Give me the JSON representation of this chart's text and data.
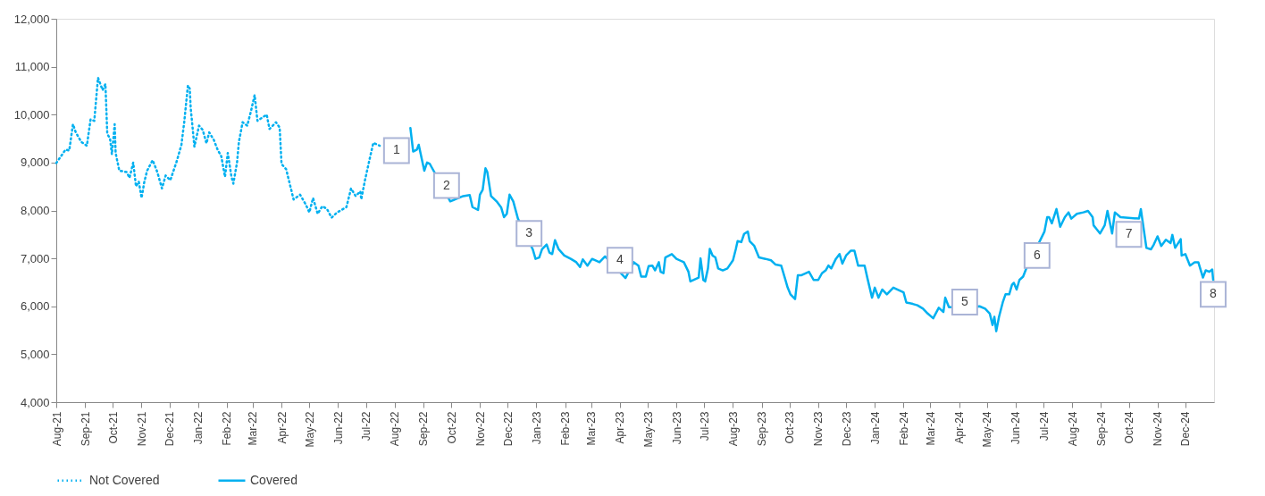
{
  "chart_data": {
    "type": "line",
    "xlim": [
      "2021-08-01",
      "2025-01-01"
    ],
    "xticks": [
      {
        "value": "2021-08-01",
        "label": "Aug-21"
      },
      {
        "value": "2021-09-01",
        "label": "Sep-21"
      },
      {
        "value": "2021-10-01",
        "label": "Oct-21"
      },
      {
        "value": "2021-11-01",
        "label": "Nov-21"
      },
      {
        "value": "2021-12-01",
        "label": "Dec-21"
      },
      {
        "value": "2022-01-01",
        "label": "Jan-22"
      },
      {
        "value": "2022-02-01",
        "label": "Feb-22"
      },
      {
        "value": "2022-03-01",
        "label": "Mar-22"
      },
      {
        "value": "2022-04-01",
        "label": "Apr-22"
      },
      {
        "value": "2022-05-01",
        "label": "May-22"
      },
      {
        "value": "2022-06-01",
        "label": "Jun-22"
      },
      {
        "value": "2022-07-01",
        "label": "Jul-22"
      },
      {
        "value": "2022-08-01",
        "label": "Aug-22"
      },
      {
        "value": "2022-09-01",
        "label": "Sep-22"
      },
      {
        "value": "2022-10-01",
        "label": "Oct-22"
      },
      {
        "value": "2022-11-01",
        "label": "Nov-22"
      },
      {
        "value": "2022-12-01",
        "label": "Dec-22"
      },
      {
        "value": "2023-01-01",
        "label": "Jan-23"
      },
      {
        "value": "2023-02-01",
        "label": "Feb-23"
      },
      {
        "value": "2023-03-01",
        "label": "Mar-23"
      },
      {
        "value": "2023-04-01",
        "label": "Apr-23"
      },
      {
        "value": "2023-05-01",
        "label": "May-23"
      },
      {
        "value": "2023-06-01",
        "label": "Jun-23"
      },
      {
        "value": "2023-07-01",
        "label": "Jul-23"
      },
      {
        "value": "2023-08-01",
        "label": "Aug-23"
      },
      {
        "value": "2023-09-01",
        "label": "Sep-23"
      },
      {
        "value": "2023-10-01",
        "label": "Oct-23"
      },
      {
        "value": "2023-11-01",
        "label": "Nov-23"
      },
      {
        "value": "2023-12-01",
        "label": "Dec-23"
      },
      {
        "value": "2024-01-01",
        "label": "Jan-24"
      },
      {
        "value": "2024-02-01",
        "label": "Feb-24"
      },
      {
        "value": "2024-03-01",
        "label": "Mar-24"
      },
      {
        "value": "2024-04-01",
        "label": "Apr-24"
      },
      {
        "value": "2024-05-01",
        "label": "May-24"
      },
      {
        "value": "2024-06-01",
        "label": "Jun-24"
      },
      {
        "value": "2024-07-01",
        "label": "Jul-24"
      },
      {
        "value": "2024-08-01",
        "label": "Aug-24"
      },
      {
        "value": "2024-09-01",
        "label": "Sep-24"
      },
      {
        "value": "2024-10-01",
        "label": "Oct-24"
      },
      {
        "value": "2024-11-01",
        "label": "Nov-24"
      },
      {
        "value": "2024-12-01",
        "label": "Dec-24"
      }
    ],
    "ylim": [
      4000,
      12000
    ],
    "yticks": [
      {
        "value": 4000,
        "label": "4,000"
      },
      {
        "value": 5000,
        "label": "5,000"
      },
      {
        "value": 6000,
        "label": "6,000"
      },
      {
        "value": 7000,
        "label": "7,000"
      },
      {
        "value": 8000,
        "label": "8,000"
      },
      {
        "value": 9000,
        "label": "9,000"
      },
      {
        "value": 10000,
        "label": "10,000"
      },
      {
        "value": 11000,
        "label": "11,000"
      },
      {
        "value": 12000,
        "label": "12,000"
      }
    ],
    "grid": false,
    "legend": "bottom",
    "series": [
      {
        "name": "Not Covered",
        "color": "#00b0f0",
        "line_style": "dotted",
        "x": [
          "2021-08-01",
          "2021-08-06",
          "2021-08-11",
          "2021-08-15",
          "2021-08-19",
          "2021-08-22",
          "2021-08-25",
          "2021-08-28",
          "2021-09-03",
          "2021-09-07",
          "2021-09-11",
          "2021-09-15",
          "2021-09-20",
          "2021-09-23",
          "2021-09-25",
          "2021-09-28",
          "2021-09-30",
          "2021-10-03",
          "2021-10-04",
          "2021-10-08",
          "2021-10-16",
          "2021-10-19",
          "2021-10-23",
          "2021-10-26",
          "2021-10-29",
          "2021-11-01",
          "2021-11-04",
          "2021-11-07",
          "2021-11-13",
          "2021-11-18",
          "2021-11-23",
          "2021-11-27",
          "2021-12-02",
          "2021-12-09",
          "2021-12-14",
          "2021-12-17",
          "2021-12-21",
          "2021-12-23",
          "2021-12-24",
          "2021-12-28",
          "2022-01-02",
          "2022-01-06",
          "2022-01-10",
          "2022-01-13",
          "2022-01-18",
          "2022-01-22",
          "2022-01-26",
          "2022-01-30",
          "2022-02-02",
          "2022-02-06",
          "2022-02-08",
          "2022-02-12",
          "2022-02-14",
          "2022-02-18",
          "2022-02-23",
          "2022-02-27",
          "2022-03-03",
          "2022-03-06",
          "2022-03-16",
          "2022-03-19",
          "2022-03-26",
          "2022-03-30",
          "2022-04-01",
          "2022-04-06",
          "2022-04-14",
          "2022-04-21",
          "2022-04-27",
          "2022-05-01",
          "2022-05-05",
          "2022-05-10",
          "2022-05-15",
          "2022-05-20",
          "2022-05-25",
          "2022-05-31",
          "2022-06-10",
          "2022-06-15",
          "2022-06-20",
          "2022-06-25",
          "2022-06-26",
          "2022-06-30",
          "2022-07-05",
          "2022-07-09",
          "2022-07-16"
        ],
        "values": [
          8990,
          9130,
          9270,
          9250,
          9800,
          9630,
          9530,
          9430,
          9350,
          9900,
          9870,
          10770,
          10510,
          10640,
          9600,
          9500,
          9170,
          9800,
          9200,
          8830,
          8800,
          8680,
          9000,
          8500,
          8600,
          8260,
          8600,
          8830,
          9050,
          8800,
          8460,
          8730,
          8630,
          9030,
          9370,
          9840,
          10610,
          10540,
          10140,
          9330,
          9770,
          9680,
          9400,
          9630,
          9470,
          9270,
          9130,
          8700,
          9200,
          8700,
          8560,
          9000,
          9430,
          9840,
          9770,
          10070,
          10410,
          9870,
          10000,
          9700,
          9840,
          9730,
          8970,
          8860,
          8230,
          8330,
          8130,
          7960,
          8260,
          7930,
          8090,
          8030,
          7850,
          7960,
          8070,
          8460,
          8300,
          8400,
          8230,
          8630,
          9070,
          9410,
          9350
        ]
      },
      {
        "name": "Covered",
        "color": "#00b0f0",
        "line_style": "solid",
        "x": [
          "2022-08-18",
          "2022-08-21",
          "2022-08-25",
          "2022-08-27",
          "2022-09-02",
          "2022-09-05",
          "2022-09-08",
          "2022-09-12",
          "2022-09-30",
          "2022-10-14",
          "2022-10-21",
          "2022-10-24",
          "2022-10-30",
          "2022-11-01",
          "2022-11-04",
          "2022-11-07",
          "2022-11-09",
          "2022-11-13",
          "2022-11-19",
          "2022-11-24",
          "2022-11-27",
          "2022-11-30",
          "2022-12-03",
          "2022-12-07",
          "2022-12-12",
          "2022-12-28",
          "2022-12-31",
          "2023-01-04",
          "2023-01-07",
          "2023-01-12",
          "2023-01-15",
          "2023-01-18",
          "2023-01-21",
          "2023-01-25",
          "2023-01-31",
          "2023-02-07",
          "2023-02-13",
          "2023-02-17",
          "2023-02-20",
          "2023-02-25",
          "2023-03-02",
          "2023-03-10",
          "2023-03-16",
          "2023-04-07",
          "2023-04-16",
          "2023-04-21",
          "2023-04-24",
          "2023-04-29",
          "2023-05-02",
          "2023-05-06",
          "2023-05-09",
          "2023-05-13",
          "2023-05-15",
          "2023-05-18",
          "2023-05-20",
          "2023-05-27",
          "2023-06-01",
          "2023-06-09",
          "2023-06-14",
          "2023-06-16",
          "2023-06-25",
          "2023-06-27",
          "2023-06-30",
          "2023-07-02",
          "2023-07-05",
          "2023-07-07",
          "2023-07-10",
          "2023-07-13",
          "2023-07-16",
          "2023-07-21",
          "2023-07-26",
          "2023-08-01",
          "2023-08-04",
          "2023-08-06",
          "2023-08-10",
          "2023-08-13",
          "2023-08-17",
          "2023-08-19",
          "2023-08-24",
          "2023-08-29",
          "2023-09-05",
          "2023-09-11",
          "2023-09-16",
          "2023-09-22",
          "2023-09-26",
          "2023-09-29",
          "2023-10-02",
          "2023-10-07",
          "2023-10-10",
          "2023-10-14",
          "2023-10-22",
          "2023-10-27",
          "2023-11-01",
          "2023-11-05",
          "2023-11-09",
          "2023-11-12",
          "2023-11-15",
          "2023-11-20",
          "2023-11-24",
          "2023-11-27",
          "2023-12-01",
          "2023-12-06",
          "2023-12-10",
          "2023-12-14",
          "2023-12-21",
          "2023-12-24",
          "2023-12-29",
          "2024-01-01",
          "2024-01-05",
          "2024-01-09",
          "2024-01-14",
          "2024-01-21",
          "2024-02-01",
          "2024-02-04",
          "2024-02-11",
          "2024-02-16",
          "2024-02-22",
          "2024-02-27",
          "2024-03-04",
          "2024-03-10",
          "2024-03-15",
          "2024-03-17",
          "2024-03-21",
          "2024-04-23",
          "2024-04-29",
          "2024-05-04",
          "2024-05-07",
          "2024-05-09",
          "2024-05-11",
          "2024-05-14",
          "2024-05-18",
          "2024-05-21",
          "2024-05-25",
          "2024-05-28",
          "2024-05-30",
          "2024-06-02",
          "2024-06-05",
          "2024-06-09",
          "2024-06-12",
          "2024-07-02",
          "2024-07-05",
          "2024-07-07",
          "2024-07-10",
          "2024-07-15",
          "2024-07-19",
          "2024-07-24",
          "2024-07-28",
          "2024-07-31",
          "2024-08-06",
          "2024-08-13",
          "2024-08-18",
          "2024-08-23",
          "2024-08-24",
          "2024-08-31",
          "2024-09-05",
          "2024-09-08",
          "2024-09-13",
          "2024-09-16",
          "2024-09-22",
          "2024-10-12",
          "2024-10-14",
          "2024-10-20",
          "2024-10-25",
          "2024-10-28",
          "2024-11-01",
          "2024-11-05",
          "2024-11-10",
          "2024-11-15",
          "2024-11-17",
          "2024-11-20",
          "2024-11-26",
          "2024-11-27",
          "2024-12-01",
          "2024-12-06",
          "2024-12-11",
          "2024-12-15",
          "2024-12-20",
          "2024-12-23",
          "2024-12-27",
          "2024-12-30",
          "2024-12-31"
        ],
        "values": [
          9720,
          9230,
          9270,
          9370,
          8830,
          9000,
          8970,
          8830,
          8190,
          8300,
          8320,
          8070,
          8010,
          8330,
          8430,
          8880,
          8800,
          8300,
          8190,
          8060,
          7860,
          7930,
          8330,
          8190,
          7830,
          7190,
          6990,
          7020,
          7190,
          7290,
          7120,
          7090,
          7380,
          7190,
          7060,
          6990,
          6920,
          6820,
          6980,
          6850,
          6990,
          6920,
          7040,
          6590,
          6920,
          6850,
          6620,
          6620,
          6840,
          6850,
          6750,
          6920,
          6720,
          6690,
          7020,
          7090,
          6990,
          6920,
          6720,
          6520,
          6600,
          7000,
          6550,
          6520,
          6790,
          7200,
          7060,
          7020,
          6790,
          6750,
          6790,
          6960,
          7190,
          7360,
          7340,
          7510,
          7560,
          7360,
          7260,
          7020,
          6990,
          6960,
          6870,
          6850,
          6590,
          6390,
          6250,
          6150,
          6650,
          6650,
          6720,
          6550,
          6550,
          6690,
          6750,
          6850,
          6790,
          6990,
          7090,
          6890,
          7060,
          7160,
          7160,
          6850,
          6850,
          6590,
          6180,
          6390,
          6180,
          6350,
          6250,
          6390,
          6290,
          6080,
          6050,
          6020,
          5950,
          5850,
          5750,
          5970,
          5880,
          6180,
          5980,
          6000,
          5950,
          5850,
          5610,
          5780,
          5480,
          5780,
          6080,
          6250,
          6250,
          6450,
          6490,
          6350,
          6550,
          6620,
          6770,
          7560,
          7860,
          7860,
          7730,
          8030,
          7660,
          7860,
          7960,
          7830,
          7930,
          7960,
          7990,
          7860,
          7690,
          7520,
          7690,
          7990,
          7520,
          7960,
          7860,
          7830,
          8030,
          7220,
          7190,
          7290,
          7460,
          7260,
          7390,
          7320,
          7490,
          7220,
          7400,
          7060,
          7090,
          6850,
          6920,
          6920,
          6600,
          6750,
          6720,
          6770,
          6550
        ]
      }
    ],
    "annotations": [
      {
        "text": "1",
        "x": "2022-08-03",
        "y": 9250
      },
      {
        "text": "2",
        "x": "2022-09-26",
        "y": 8520
      },
      {
        "text": "3",
        "x": "2022-12-24",
        "y": 7520
      },
      {
        "text": "4",
        "x": "2023-04-01",
        "y": 6960
      },
      {
        "text": "5",
        "x": "2024-04-07",
        "y": 6090
      },
      {
        "text": "6",
        "x": "2024-06-24",
        "y": 7060
      },
      {
        "text": "7",
        "x": "2024-10-01",
        "y": 7500
      },
      {
        "text": "8",
        "x": "2024-12-31",
        "y": 6250
      }
    ]
  }
}
